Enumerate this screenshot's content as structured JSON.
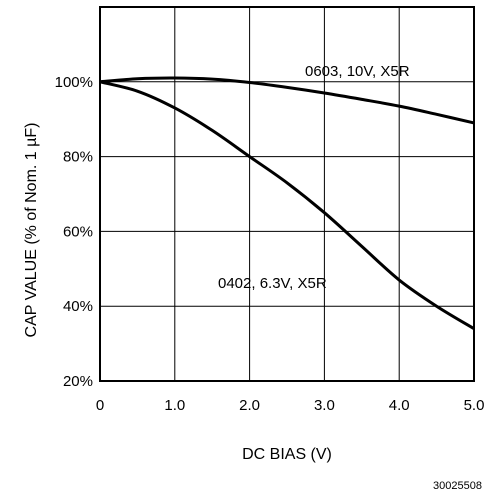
{
  "chart_data": {
    "type": "line",
    "title": "",
    "xlabel": "DC BIAS (V)",
    "ylabel": "CAP VALUE (% of Nom. 1 µF)",
    "xlim": [
      0,
      5.0
    ],
    "ylim": [
      20,
      120
    ],
    "x_ticks": [
      0,
      1.0,
      2.0,
      3.0,
      4.0,
      5.0
    ],
    "x_tick_labels": [
      "0",
      "1.0",
      "2.0",
      "3.0",
      "4.0",
      "5.0"
    ],
    "y_ticks": [
      20,
      40,
      60,
      80,
      100
    ],
    "y_tick_labels": [
      "20%",
      "40%",
      "60%",
      "80%",
      "100%"
    ],
    "grid": true,
    "series": [
      {
        "name": "0603, 10V, X5R",
        "x": [
          0,
          0.5,
          1.0,
          1.5,
          2.0,
          2.5,
          3.0,
          3.5,
          4.0,
          4.5,
          5.0
        ],
        "y": [
          100,
          100.8,
          101,
          100.7,
          99.8,
          98.5,
          97,
          95.3,
          93.5,
          91.3,
          89
        ]
      },
      {
        "name": "0402, 6.3V, X5R",
        "x": [
          0,
          0.5,
          1.0,
          1.5,
          2.0,
          2.5,
          3.0,
          3.5,
          4.0,
          4.5,
          5.0
        ],
        "y": [
          100,
          97.5,
          93,
          87,
          80,
          73,
          65,
          56,
          47,
          40,
          34
        ]
      }
    ]
  },
  "figure_id": "30025508"
}
